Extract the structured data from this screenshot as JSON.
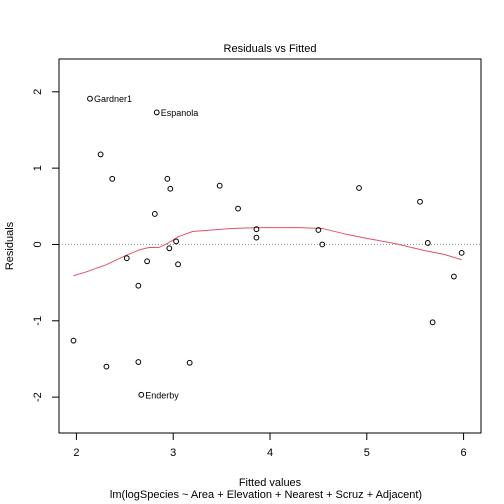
{
  "chart_data": {
    "type": "scatter",
    "title": "Residuals vs Fitted",
    "xlabel": "Fitted values",
    "subtitle": "lm(logSpecies ~ Area + Elevation + Nearest + Scruz + Adjacent)",
    "ylabel": "Residuals",
    "xlim": [
      1.82,
      6.18
    ],
    "ylim": [
      -2.47,
      2.43
    ],
    "x_ticks": [
      2,
      3,
      4,
      5,
      6
    ],
    "y_ticks": [
      -2,
      -1,
      0,
      1,
      2
    ],
    "grid": false,
    "reference_line": {
      "y": 0,
      "style": "dotted",
      "color": "#999999"
    },
    "points": [
      {
        "x": 2.14,
        "y": 1.91,
        "label": "Gardner1"
      },
      {
        "x": 2.83,
        "y": 1.73,
        "label": "Espanola"
      },
      {
        "x": 2.25,
        "y": 1.18
      },
      {
        "x": 2.37,
        "y": 0.86
      },
      {
        "x": 2.94,
        "y": 0.86
      },
      {
        "x": 2.97,
        "y": 0.73
      },
      {
        "x": 3.48,
        "y": 0.77
      },
      {
        "x": 4.92,
        "y": 0.74
      },
      {
        "x": 5.55,
        "y": 0.56
      },
      {
        "x": 3.67,
        "y": 0.47
      },
      {
        "x": 2.81,
        "y": 0.4
      },
      {
        "x": 3.86,
        "y": 0.2
      },
      {
        "x": 4.5,
        "y": 0.19
      },
      {
        "x": 3.86,
        "y": 0.09
      },
      {
        "x": 3.03,
        "y": 0.04
      },
      {
        "x": 5.63,
        "y": 0.02
      },
      {
        "x": 2.96,
        "y": -0.05
      },
      {
        "x": 4.54,
        "y": 0.0
      },
      {
        "x": 5.98,
        "y": -0.11
      },
      {
        "x": 2.52,
        "y": -0.18
      },
      {
        "x": 2.73,
        "y": -0.22
      },
      {
        "x": 3.05,
        "y": -0.26
      },
      {
        "x": 5.9,
        "y": -0.42
      },
      {
        "x": 2.64,
        "y": -0.54
      },
      {
        "x": 5.68,
        "y": -1.02
      },
      {
        "x": 1.97,
        "y": -1.26
      },
      {
        "x": 2.64,
        "y": -1.54
      },
      {
        "x": 3.17,
        "y": -1.55
      },
      {
        "x": 2.31,
        "y": -1.6
      },
      {
        "x": 2.67,
        "y": -1.97,
        "label": "Enderby"
      }
    ],
    "smooth_line": {
      "color": "#df536b",
      "x": [
        1.97,
        2.1,
        2.3,
        2.5,
        2.65,
        2.75,
        2.85,
        2.95,
        3.05,
        3.2,
        3.4,
        3.6,
        3.86,
        4.1,
        4.3,
        4.54,
        4.8,
        5.0,
        5.3,
        5.6,
        5.8,
        5.98
      ],
      "y": [
        -0.41,
        -0.36,
        -0.27,
        -0.15,
        -0.07,
        -0.04,
        -0.04,
        0.02,
        0.1,
        0.17,
        0.19,
        0.21,
        0.22,
        0.22,
        0.22,
        0.21,
        0.13,
        0.08,
        0.01,
        -0.08,
        -0.13,
        -0.2
      ]
    }
  }
}
